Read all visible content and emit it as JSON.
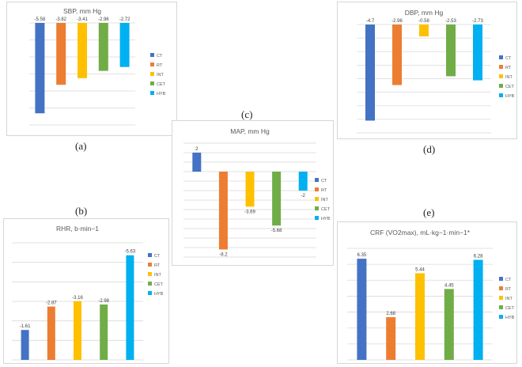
{
  "captions": {
    "a": "(a)",
    "b": "(b)",
    "c": "(c)",
    "d": "(d)",
    "e": "(e)"
  },
  "legend": [
    "CT",
    "RT",
    "INT",
    "CET",
    "HYB"
  ],
  "colors": [
    "#4472c4",
    "#ed7d31",
    "#ffc000",
    "#70ad47",
    "#00b0f0"
  ],
  "chart_data": [
    {
      "id": "sbp",
      "type": "bar",
      "title": "SBP, mm Hg",
      "categories": [
        "CT",
        "RT",
        "INT",
        "CET",
        "HYB"
      ],
      "values": [
        -5.58,
        -3.82,
        -3.41,
        -2.96,
        -2.72
      ],
      "labels": [
        "-5.58",
        "-3.82",
        "-3.41",
        "-2.96",
        "-2.72"
      ],
      "ylim": [
        -6.3,
        0
      ],
      "grid": true,
      "legend_position": "right"
    },
    {
      "id": "dbp",
      "type": "bar",
      "title": "DBP, mm Hg",
      "categories": [
        "CT",
        "RT",
        "INT",
        "CET",
        "HYB"
      ],
      "values": [
        -4.7,
        -2.96,
        -0.58,
        -2.53,
        -2.73
      ],
      "labels": [
        "-4.7",
        "-2.96",
        "-0.58",
        "-2.53",
        "-2.73"
      ],
      "ylim": [
        -5.3,
        0
      ],
      "grid": true,
      "legend_position": "right"
    },
    {
      "id": "map",
      "type": "bar",
      "title": "MAP, mm Hg",
      "categories": [
        "CT",
        "RT",
        "INT",
        "CET",
        "HYB"
      ],
      "values": [
        2,
        -8.2,
        -3.69,
        -5.68,
        -2
      ],
      "labels": [
        "2",
        "-8.2",
        "-3.69",
        "-5.68",
        "-2"
      ],
      "ylim": [
        -9,
        3
      ],
      "grid": true,
      "legend_position": "right"
    },
    {
      "id": "rhr",
      "type": "bar",
      "title": "RHR, b·min−1",
      "categories": [
        "CT",
        "RT",
        "INT",
        "CET",
        "HYB"
      ],
      "values": [
        -1.61,
        -2.87,
        -3.16,
        -2.98,
        -5.63
      ],
      "labels": [
        "-1.61",
        "-2.87",
        "-3.16",
        "-2.98",
        "-5.63"
      ],
      "ylim": [
        0,
        -6.3
      ],
      "grid": true,
      "legend_position": "right"
    },
    {
      "id": "crf",
      "type": "bar",
      "title": "CRF (VO2max), mL·kg−1·min−1*",
      "categories": [
        "CT",
        "RT",
        "INT",
        "CET",
        "HYB"
      ],
      "values": [
        6.35,
        2.68,
        5.44,
        4.45,
        6.28
      ],
      "labels": [
        "6.35",
        "2.68",
        "5.44",
        "4.45",
        "6.28"
      ],
      "ylim": [
        0,
        7
      ],
      "grid": true,
      "legend_position": "right"
    }
  ]
}
